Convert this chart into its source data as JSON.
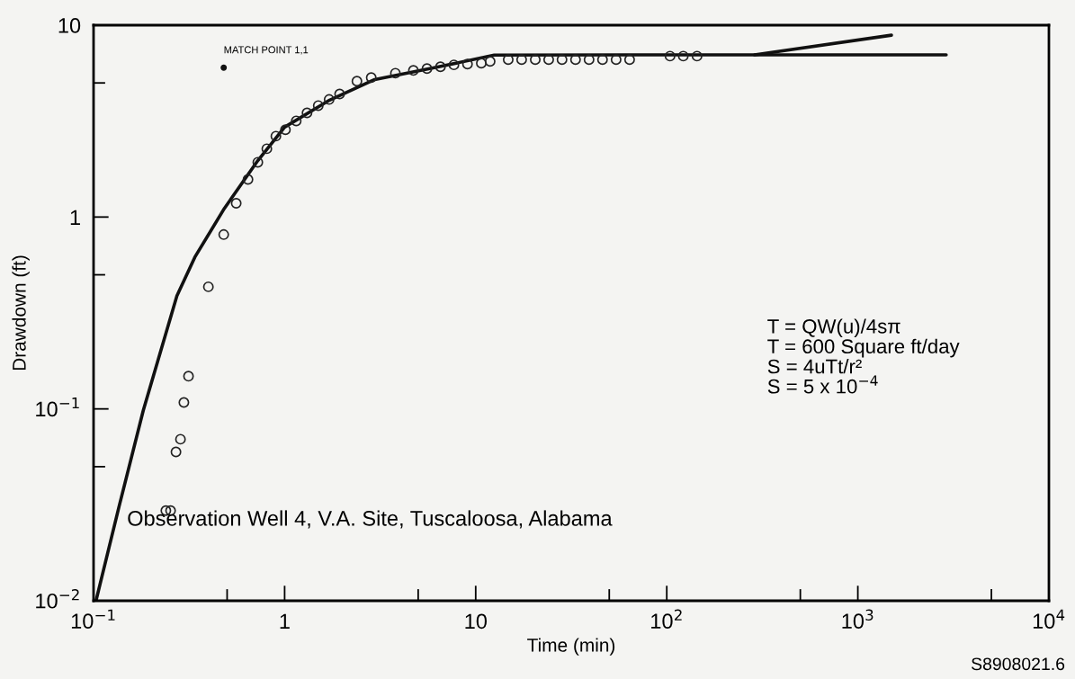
{
  "chart_data": {
    "type": "line",
    "xlabel": "Time (min)",
    "ylabel": "Drawdown (ft)",
    "log": "xy",
    "grid": false,
    "legend": false,
    "xlim": [
      0.1,
      10000
    ],
    "ylim": [
      0.01,
      10
    ],
    "xticks": [
      {
        "value": 0.1,
        "label": "10$^{−1}$"
      },
      {
        "value": 0.5,
        "label": null
      },
      1,
      {
        "value": 5,
        "label": null
      },
      10,
      {
        "value": 50,
        "label": null
      },
      {
        "value": 100,
        "label": "10$^{2}$"
      },
      {
        "value": 500,
        "label": null
      },
      {
        "value": 1000,
        "label": "10$^{3}$"
      },
      {
        "value": 5000,
        "label": null
      },
      {
        "value": 10000,
        "label": "10$^{4}$"
      }
    ],
    "yticks": [
      {
        "value": 0.01,
        "label": "10$^{−2}$"
      },
      {
        "value": 0.05,
        "label": null
      },
      {
        "value": 0.1,
        "label": "10$^{−1}$"
      },
      {
        "value": 0.5,
        "label": null
      },
      1,
      {
        "value": 5,
        "label": null
      },
      10
    ],
    "series": [
      {
        "color": "#111111",
        "line_style": "solid",
        "marker": "none",
        "x": [
          0.103,
          0.136,
          0.182,
          0.273,
          0.339,
          0.484,
          0.724,
          1.0,
          1.72,
          2.96,
          6.07,
          12.5,
          64,
          288,
          2900
        ],
        "values": [
          0.01,
          0.031,
          0.098,
          0.388,
          0.618,
          1.11,
          1.97,
          2.94,
          4.07,
          5.21,
          6.0,
          6.98,
          7.0,
          7.0,
          7.0
        ]
      },
      {
        "color": "#111111",
        "line_style": "solid",
        "marker": "none",
        "x": [
          288,
          1500
        ],
        "values": [
          7.0,
          8.87
        ]
      },
      {
        "type": "scatter",
        "color": "#222222",
        "marker": "circle",
        "x": [
          0.239,
          0.253,
          0.27,
          0.285,
          0.297,
          0.314,
          0.399,
          0.48,
          0.558,
          0.643,
          0.724,
          0.807,
          0.9,
          1.01,
          1.15,
          1.31,
          1.5,
          1.71,
          1.94,
          2.39,
          2.84,
          3.8,
          4.72,
          5.56,
          6.54,
          7.69,
          9.06,
          10.7,
          11.9,
          14.8,
          17.4,
          20.5,
          24.1,
          28.3,
          33.3,
          39.2,
          46.1,
          54.3,
          63.9,
          104,
          122,
          144
        ],
        "values": [
          0.0295,
          0.0295,
          0.0597,
          0.0695,
          0.108,
          0.148,
          0.433,
          0.81,
          1.18,
          1.57,
          1.93,
          2.27,
          2.64,
          2.85,
          3.17,
          3.49,
          3.81,
          4.1,
          4.38,
          5.11,
          5.33,
          5.62,
          5.81,
          5.94,
          6.07,
          6.21,
          6.27,
          6.34,
          6.48,
          6.62,
          6.62,
          6.62,
          6.62,
          6.62,
          6.62,
          6.62,
          6.62,
          6.62,
          6.62,
          6.9,
          6.9,
          6.9
        ]
      }
    ],
    "annotations": [
      {
        "text": "MATCH POINT 1,1",
        "x": 0.48,
        "y": 6.0
      },
      "Observation Well 4, V.A. Site, Tuscaloosa, Alabama",
      "T = QW(u)/4sπ\nT = 600 Square ft/day\nS = 4uTt/r²\nS = 5 x 10$^{−4}$",
      "S8908021.6"
    ]
  }
}
